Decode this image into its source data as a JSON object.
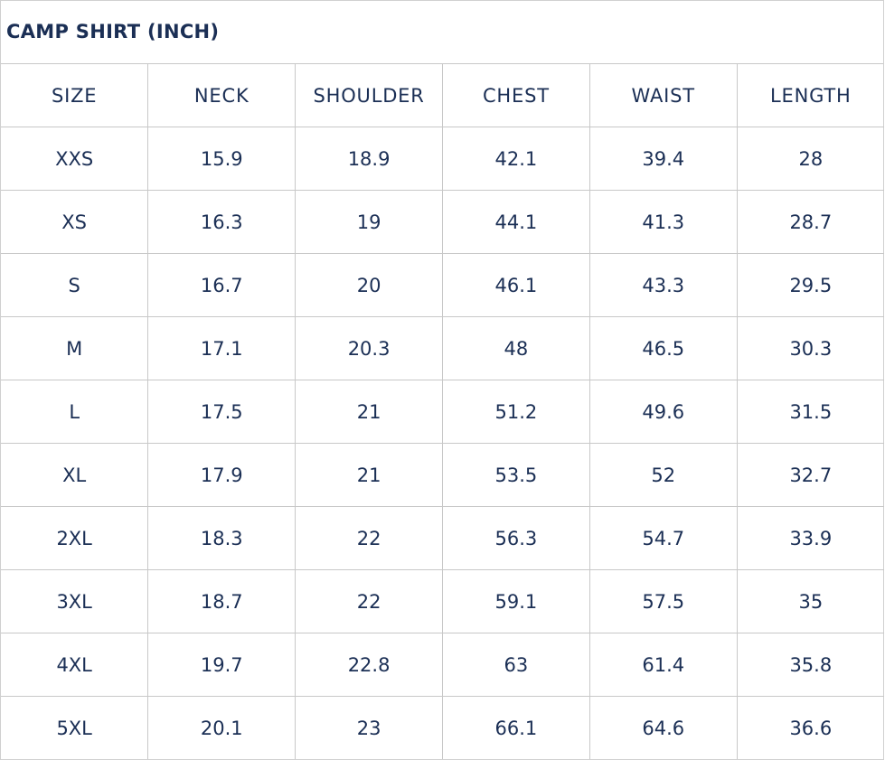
{
  "title": "CAMP SHIRT (INCH)",
  "colors": {
    "text": "#1b2f55",
    "border": "#c8c8c8"
  },
  "headers": [
    "SIZE",
    "NECK",
    "SHOULDER",
    "CHEST",
    "WAIST",
    "LENGTH"
  ],
  "rows": [
    [
      "XXS",
      "15.9",
      "18.9",
      "42.1",
      "39.4",
      "28"
    ],
    [
      "XS",
      "16.3",
      "19",
      "44.1",
      "41.3",
      "28.7"
    ],
    [
      "S",
      "16.7",
      "20",
      "46.1",
      "43.3",
      "29.5"
    ],
    [
      "M",
      "17.1",
      "20.3",
      "48",
      "46.5",
      "30.3"
    ],
    [
      "L",
      "17.5",
      "21",
      "51.2",
      "49.6",
      "31.5"
    ],
    [
      "XL",
      "17.9",
      "21",
      "53.5",
      "52",
      "32.7"
    ],
    [
      "2XL",
      "18.3",
      "22",
      "56.3",
      "54.7",
      "33.9"
    ],
    [
      "3XL",
      "18.7",
      "22",
      "59.1",
      "57.5",
      "35"
    ],
    [
      "4XL",
      "19.7",
      "22.8",
      "63",
      "61.4",
      "35.8"
    ],
    [
      "5XL",
      "20.1",
      "23",
      "66.1",
      "64.6",
      "36.6"
    ]
  ]
}
